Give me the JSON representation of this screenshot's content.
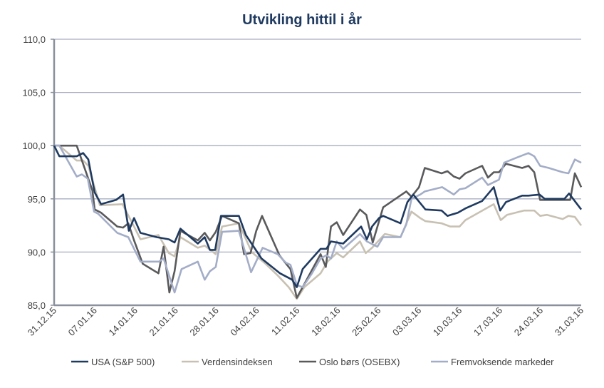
{
  "chart_data": {
    "type": "line",
    "title": "Utvikling hittil i år",
    "xlabel": "",
    "ylabel": "",
    "x_unit": "days since 31.12.15",
    "xlim": [
      0,
      91
    ],
    "ylim": [
      85,
      110
    ],
    "yticks": [
      85,
      90,
      95,
      100,
      105,
      110
    ],
    "ytick_labels": [
      "85,0",
      "90,0",
      "95,0",
      "100,0",
      "105,0",
      "110,0"
    ],
    "xticks": [
      0,
      7,
      14,
      21,
      28,
      35,
      42,
      49,
      56,
      63,
      70,
      77,
      84,
      91
    ],
    "xtick_labels": [
      "31.12.15",
      "07.01.16",
      "14.01.16",
      "21.01.16",
      "28.01.16",
      "04.02.16",
      "11.02.16",
      "18.02.16",
      "25.02.16",
      "03.03.16",
      "10.03.16",
      "17.03.16",
      "24.03.16",
      "31.03.16"
    ],
    "grid": "horizontal",
    "legend_position": "bottom",
    "series": [
      {
        "name": "USA (S&P 500)",
        "color": "#1f3a60",
        "points": [
          [
            0,
            100
          ],
          [
            0.9,
            99.0
          ],
          [
            3.9,
            99.0
          ],
          [
            5,
            99.3
          ],
          [
            5.9,
            98.7
          ],
          [
            7,
            95.6
          ],
          [
            8.1,
            94.5
          ],
          [
            10.7,
            94.9
          ],
          [
            11.9,
            95.4
          ],
          [
            12.9,
            92.0
          ],
          [
            13.8,
            93.2
          ],
          [
            14.9,
            91.8
          ],
          [
            17.7,
            91.4
          ],
          [
            19.8,
            91.2
          ],
          [
            20.8,
            90.9
          ],
          [
            21.8,
            92.2
          ],
          [
            24.8,
            90.8
          ],
          [
            26,
            91.4
          ],
          [
            26.9,
            90.2
          ],
          [
            27.8,
            90.2
          ],
          [
            28.8,
            93.4
          ],
          [
            31.9,
            93.4
          ],
          [
            33.1,
            91.6
          ],
          [
            35.8,
            89.4
          ],
          [
            39,
            88.0
          ],
          [
            41.1,
            87.4
          ],
          [
            41.9,
            86.7
          ],
          [
            42.9,
            88.4
          ],
          [
            46,
            90.3
          ],
          [
            47,
            90.3
          ],
          [
            47.8,
            91.0
          ],
          [
            49.9,
            90.8
          ],
          [
            53,
            92.4
          ],
          [
            54,
            91.2
          ],
          [
            54.9,
            92.4
          ],
          [
            56.1,
            93.2
          ],
          [
            56.8,
            93.4
          ],
          [
            59.8,
            92.7
          ],
          [
            61,
            94.7
          ],
          [
            62,
            95.4
          ],
          [
            64.1,
            94.0
          ],
          [
            66.9,
            93.9
          ],
          [
            67.9,
            93.4
          ],
          [
            69.7,
            93.7
          ],
          [
            71,
            94.1
          ],
          [
            73.9,
            94.8
          ],
          [
            75.9,
            96.1
          ],
          [
            77,
            93.9
          ],
          [
            78,
            94.7
          ],
          [
            80.8,
            95.3
          ],
          [
            81.9,
            95.3
          ],
          [
            83.8,
            95.4
          ],
          [
            84.7,
            95.0
          ],
          [
            88.1,
            95.0
          ],
          [
            88.9,
            95.5
          ],
          [
            91,
            94.0
          ]
        ]
      },
      {
        "name": "Verdensindeksen",
        "color": "#c8c1b3",
        "points": [
          [
            0,
            100
          ],
          [
            0.9,
            100
          ],
          [
            3.9,
            98.6
          ],
          [
            5,
            98.6
          ],
          [
            5.9,
            98.1
          ],
          [
            7.9,
            94.4
          ],
          [
            11.8,
            94.5
          ],
          [
            13.8,
            92.4
          ],
          [
            14.9,
            91.2
          ],
          [
            18,
            91.6
          ],
          [
            19.8,
            89.9
          ],
          [
            20.8,
            89.6
          ],
          [
            21.8,
            91.4
          ],
          [
            24.8,
            90.4
          ],
          [
            26,
            90.6
          ],
          [
            27.9,
            89.8
          ],
          [
            29,
            92.4
          ],
          [
            31.9,
            92.7
          ],
          [
            34.1,
            90.0
          ],
          [
            36.5,
            88.9
          ],
          [
            38.6,
            87.8
          ],
          [
            40.5,
            86.7
          ],
          [
            41.9,
            85.6
          ],
          [
            43.2,
            86.7
          ],
          [
            46,
            88.0
          ],
          [
            47.2,
            89.1
          ],
          [
            48.8,
            89.9
          ],
          [
            49.9,
            89.5
          ],
          [
            52.8,
            91.0
          ],
          [
            53.8,
            89.9
          ],
          [
            54.9,
            90.4
          ],
          [
            57.1,
            91.7
          ],
          [
            59.8,
            91.4
          ],
          [
            61.7,
            93.8
          ],
          [
            63.2,
            93.2
          ],
          [
            64.1,
            92.9
          ],
          [
            66.9,
            92.7
          ],
          [
            68.4,
            92.4
          ],
          [
            70,
            92.4
          ],
          [
            71,
            93.0
          ],
          [
            75.9,
            94.5
          ],
          [
            77.1,
            93.0
          ],
          [
            78.2,
            93.5
          ],
          [
            81.1,
            93.9
          ],
          [
            82.9,
            93.9
          ],
          [
            83.9,
            93.4
          ],
          [
            85.1,
            93.5
          ],
          [
            87.8,
            93.1
          ],
          [
            88.8,
            93.4
          ],
          [
            89.9,
            93.3
          ],
          [
            91,
            92.5
          ]
        ]
      },
      {
        "name": "Oslo børs (OSEBX)",
        "color": "#5a5a5c",
        "points": [
          [
            0,
            100
          ],
          [
            3.9,
            100
          ],
          [
            6.6,
            95.8
          ],
          [
            7,
            94.0
          ],
          [
            8.1,
            93.7
          ],
          [
            10.9,
            92.4
          ],
          [
            11.9,
            92.3
          ],
          [
            12.8,
            92.7
          ],
          [
            13.8,
            91.1
          ],
          [
            15.3,
            88.9
          ],
          [
            18,
            88.0
          ],
          [
            18.9,
            90.5
          ],
          [
            19.9,
            86.2
          ],
          [
            20.8,
            88.2
          ],
          [
            21.8,
            92.0
          ],
          [
            24.8,
            91.1
          ],
          [
            26,
            91.8
          ],
          [
            26.9,
            91.1
          ],
          [
            27.9,
            91.9
          ],
          [
            29,
            93.4
          ],
          [
            31.9,
            92.7
          ],
          [
            32.8,
            89.8
          ],
          [
            33.9,
            89.9
          ],
          [
            34.9,
            92.0
          ],
          [
            35.9,
            93.4
          ],
          [
            38.9,
            89.7
          ],
          [
            39.9,
            89.0
          ],
          [
            40.8,
            88.4
          ],
          [
            41.9,
            85.7
          ],
          [
            43.2,
            87.0
          ],
          [
            46,
            89.8
          ],
          [
            46.9,
            88.6
          ],
          [
            47.8,
            92.4
          ],
          [
            48.8,
            92.8
          ],
          [
            49.9,
            91.6
          ],
          [
            52.8,
            94.0
          ],
          [
            53.9,
            93.5
          ],
          [
            55,
            90.9
          ],
          [
            56.8,
            94.2
          ],
          [
            60.8,
            95.7
          ],
          [
            61.7,
            95.2
          ],
          [
            63,
            96.1
          ],
          [
            64,
            97.9
          ],
          [
            66.9,
            97.4
          ],
          [
            67.9,
            97.6
          ],
          [
            69,
            97.1
          ],
          [
            70,
            96.9
          ],
          [
            71,
            97.4
          ],
          [
            73.9,
            98.1
          ],
          [
            74.9,
            97.0
          ],
          [
            75.9,
            97.5
          ],
          [
            76.8,
            97.5
          ],
          [
            78,
            98.3
          ],
          [
            80.8,
            97.9
          ],
          [
            81.9,
            98.1
          ],
          [
            82.9,
            97.5
          ],
          [
            83.9,
            94.9
          ],
          [
            89.1,
            94.9
          ],
          [
            89.9,
            97.4
          ],
          [
            91,
            96.1
          ]
        ]
      },
      {
        "name": "Fremvoksende markeder",
        "color": "#a3adc7",
        "points": [
          [
            0,
            100
          ],
          [
            0.9,
            100
          ],
          [
            3.9,
            97.1
          ],
          [
            4.8,
            97.3
          ],
          [
            5.8,
            96.9
          ],
          [
            6.9,
            93.8
          ],
          [
            7.6,
            93.6
          ],
          [
            10.9,
            91.8
          ],
          [
            12.8,
            91.4
          ],
          [
            14.9,
            89.1
          ],
          [
            18.1,
            89.1
          ],
          [
            18.9,
            89.4
          ],
          [
            20.8,
            86.2
          ],
          [
            22,
            88.4
          ],
          [
            24.8,
            89.1
          ],
          [
            26,
            87.4
          ],
          [
            26.9,
            88.2
          ],
          [
            27.9,
            88.6
          ],
          [
            29,
            91.9
          ],
          [
            31.9,
            92.0
          ],
          [
            34,
            88.1
          ],
          [
            36,
            90.4
          ],
          [
            38.6,
            89.8
          ],
          [
            40,
            89.0
          ],
          [
            40.8,
            88.8
          ],
          [
            41.9,
            86.9
          ],
          [
            42.9,
            86.7
          ],
          [
            44.4,
            87.9
          ],
          [
            46,
            89.4
          ],
          [
            47,
            89.7
          ],
          [
            47.8,
            89.4
          ],
          [
            48.8,
            91.0
          ],
          [
            49.9,
            90.3
          ],
          [
            52.8,
            91.7
          ],
          [
            54,
            91.0
          ],
          [
            55.8,
            90.5
          ],
          [
            56.8,
            91.4
          ],
          [
            59.8,
            91.4
          ],
          [
            60.8,
            92.6
          ],
          [
            61.7,
            95.0
          ],
          [
            63.2,
            95.4
          ],
          [
            64,
            95.7
          ],
          [
            67,
            96.1
          ],
          [
            69,
            95.4
          ],
          [
            70,
            95.9
          ],
          [
            71,
            96.0
          ],
          [
            73.9,
            97.0
          ],
          [
            74.9,
            96.3
          ],
          [
            76.8,
            96.8
          ],
          [
            77.7,
            98.4
          ],
          [
            80,
            98.9
          ],
          [
            81.9,
            99.3
          ],
          [
            82.9,
            99.0
          ],
          [
            83.9,
            98.1
          ],
          [
            85.4,
            97.9
          ],
          [
            87.8,
            97.5
          ],
          [
            88.8,
            97.4
          ],
          [
            89.9,
            98.7
          ],
          [
            91,
            98.4
          ]
        ]
      }
    ]
  },
  "colors": {
    "title": "#1f3a60",
    "grid": "#a7aec0",
    "axis": "#8a909c",
    "text": "#404040"
  }
}
